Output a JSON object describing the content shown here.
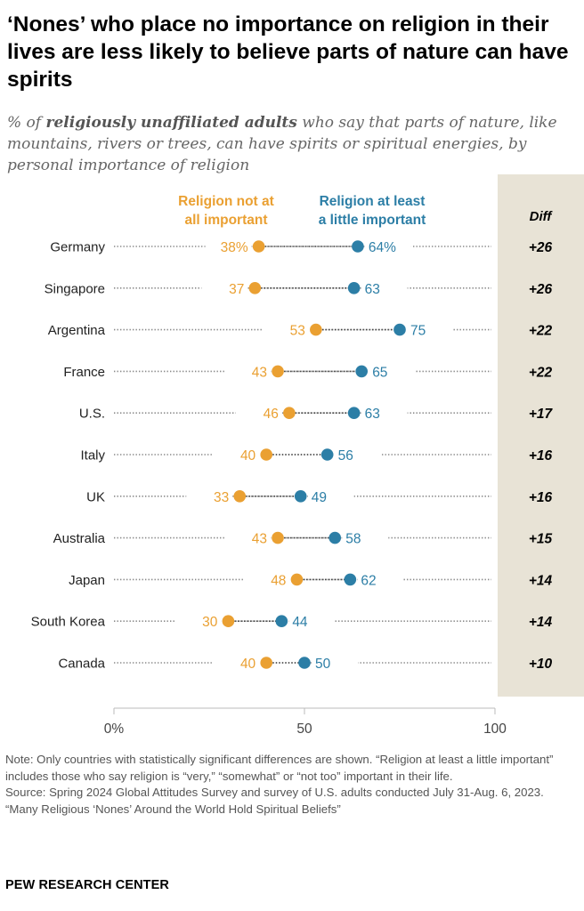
{
  "title": "‘Nones’ who place no importance on religion in their lives are less likely to believe parts of nature can have spirits",
  "subtitle": {
    "prefix": "% of ",
    "emphasis": "religiously unaffiliated adults",
    "suffix": " who say that parts of nature, like mountains, rivers or trees, can have spirits or spiritual energies, by personal importance of religion"
  },
  "colors": {
    "not_important": "#eaa032",
    "important": "#2c7ea6",
    "diff_bg": "#e8e3d6"
  },
  "chart_data": {
    "type": "dot",
    "x_range": [
      0,
      100
    ],
    "x_ticks": [
      "0%",
      "50",
      "100"
    ],
    "x_tick_values": [
      0,
      50,
      100
    ],
    "diff_header": "Diff",
    "series": [
      {
        "name": "Religion not at all important",
        "legend_lines": [
          "Religion not at",
          "all important"
        ]
      },
      {
        "name": "Religion at least a little important",
        "legend_lines": [
          "Religion at least",
          "a little important"
        ]
      }
    ],
    "rows": [
      {
        "country": "Germany",
        "not_important": 38,
        "important": 64,
        "label_a": "38%",
        "label_b": "64%",
        "diff": "+26"
      },
      {
        "country": "Singapore",
        "not_important": 37,
        "important": 63,
        "label_a": "37",
        "label_b": "63",
        "diff": "+26"
      },
      {
        "country": "Argentina",
        "not_important": 53,
        "important": 75,
        "label_a": "53",
        "label_b": "75",
        "diff": "+22"
      },
      {
        "country": "France",
        "not_important": 43,
        "important": 65,
        "label_a": "43",
        "label_b": "65",
        "diff": "+22"
      },
      {
        "country": "U.S.",
        "not_important": 46,
        "important": 63,
        "label_a": "46",
        "label_b": "63",
        "diff": "+17"
      },
      {
        "country": "Italy",
        "not_important": 40,
        "important": 56,
        "label_a": "40",
        "label_b": "56",
        "diff": "+16"
      },
      {
        "country": "UK",
        "not_important": 33,
        "important": 49,
        "label_a": "33",
        "label_b": "49",
        "diff": "+16"
      },
      {
        "country": "Australia",
        "not_important": 43,
        "important": 58,
        "label_a": "43",
        "label_b": "58",
        "diff": "+15"
      },
      {
        "country": "Japan",
        "not_important": 48,
        "important": 62,
        "label_a": "48",
        "label_b": "62",
        "diff": "+14"
      },
      {
        "country": "South Korea",
        "not_important": 30,
        "important": 44,
        "label_a": "30",
        "label_b": "44",
        "diff": "+14"
      },
      {
        "country": "Canada",
        "not_important": 40,
        "important": 50,
        "label_a": "40",
        "label_b": "50",
        "diff": "+10"
      }
    ]
  },
  "notes": [
    "Note: Only countries with statistically significant differences are shown. “Religion at least a little important” includes those who say religion is “very,” “somewhat” or “not too” important in their life.",
    "Source: Spring 2024 Global Attitudes Survey and survey of U.S. adults conducted July 31-Aug. 6, 2023.",
    "“Many Religious ‘Nones’ Around the World Hold Spiritual Beliefs”"
  ],
  "brand": "PEW RESEARCH CENTER"
}
